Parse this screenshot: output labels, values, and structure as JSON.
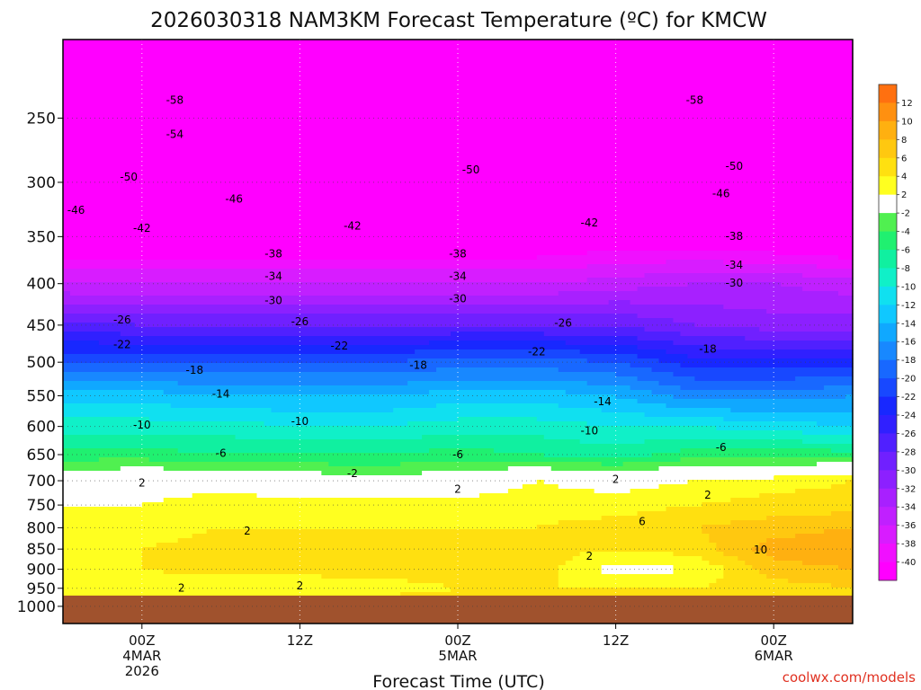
{
  "chart_data": {
    "type": "heatmap",
    "title": "2026030318 NAM3KM Forecast Temperature (ºC) for KMCW",
    "xlabel": "Forecast Time (UTC)",
    "credit": "coolwx.com/models",
    "y_axis": {
      "quantity": "pressure (hPa)",
      "scale": "log",
      "inverted": true,
      "range": [
        200,
        1050
      ],
      "ticks": [
        250,
        300,
        350,
        400,
        450,
        500,
        550,
        600,
        650,
        700,
        750,
        800,
        850,
        900,
        950,
        1000
      ]
    },
    "x_axis": {
      "range_hours": [
        -6,
        54
      ],
      "ticks": [
        {
          "hour": 0,
          "lines": [
            "00Z",
            "4MAR",
            "2026"
          ]
        },
        {
          "hour": 12,
          "lines": [
            "12Z"
          ]
        },
        {
          "hour": 24,
          "lines": [
            "00Z",
            "5MAR"
          ]
        },
        {
          "hour": 36,
          "lines": [
            "12Z"
          ]
        },
        {
          "hour": 48,
          "lines": [
            "00Z",
            "6MAR"
          ]
        }
      ]
    },
    "grid": "dotted",
    "colorbar": {
      "placement": "right",
      "levels": [
        -42,
        -40,
        -38,
        -36,
        -34,
        -32,
        -30,
        -28,
        -26,
        -24,
        -22,
        -20,
        -18,
        -16,
        -14,
        -12,
        -10,
        -8,
        -6,
        -4,
        -2,
        2,
        4,
        6,
        8,
        10,
        12,
        14
      ],
      "colors": [
        "#ff00ff",
        "#f010ff",
        "#d81cff",
        "#c020ff",
        "#a820ff",
        "#8c20ff",
        "#7020ff",
        "#5020ff",
        "#3020ff",
        "#1828ff",
        "#1848ff",
        "#1868ff",
        "#1888ff",
        "#10a8ff",
        "#10c8ff",
        "#10e0f0",
        "#10f0c8",
        "#10f0a0",
        "#20f070",
        "#50f050",
        "#ffffff",
        "#ffff20",
        "#ffe010",
        "#ffc810",
        "#ffb010",
        "#ff9010",
        "#ff7010"
      ],
      "labels": [
        -40,
        -38,
        -36,
        -34,
        -32,
        -30,
        -28,
        -26,
        -24,
        -22,
        -20,
        -18,
        -16,
        -14,
        -12,
        -10,
        -8,
        -6,
        -4,
        -2,
        2,
        4,
        6,
        8,
        10,
        12
      ],
      "label_texts": [
        "-40",
        "-38",
        "-36",
        "-34",
        "-32",
        "-30",
        "-28",
        "-26",
        "-24",
        "-22",
        "-20",
        "-18",
        "-16",
        "-14",
        "-12",
        "-10",
        "-8",
        "-6",
        "-4",
        "-2",
        "2",
        "4",
        "6",
        "8",
        "10",
        "12"
      ]
    },
    "ground_color": "#a0522d",
    "freezing_line_color": "#e0208a",
    "time_hours": [
      -6,
      0,
      6,
      12,
      18,
      24,
      30,
      36,
      42,
      48,
      54
    ],
    "pressure_levels": [
      200,
      250,
      300,
      350,
      400,
      450,
      500,
      550,
      600,
      650,
      700,
      750,
      800,
      850,
      900,
      950,
      990
    ],
    "temperature": [
      [
        -60,
        -60,
        -59,
        -60,
        -59,
        -56,
        -60,
        -57,
        -60,
        -60,
        -61
      ],
      [
        -55,
        -55,
        -55,
        -55,
        -55,
        -55,
        -55,
        -55,
        -56,
        -57,
        -57
      ],
      [
        -48,
        -49,
        -49,
        -49,
        -48,
        -49,
        -48,
        -49,
        -50,
        -51,
        -51
      ],
      [
        -43,
        -43,
        -43,
        -43,
        -43,
        -43,
        -43,
        -42,
        -42,
        -43,
        -44
      ],
      [
        -36,
        -36,
        -36,
        -36,
        -36,
        -36,
        -36,
        -35,
        -34,
        -34,
        -35
      ],
      [
        -27,
        -28,
        -28,
        -28,
        -28,
        -28,
        -28,
        -28,
        -30,
        -31,
        -31
      ],
      [
        -20,
        -20,
        -20,
        -20,
        -20,
        -19,
        -19,
        -20,
        -23,
        -23,
        -23
      ],
      [
        -13,
        -13,
        -14,
        -14,
        -14,
        -13,
        -13,
        -14,
        -17,
        -17,
        -16
      ],
      [
        -9,
        -9,
        -9,
        -10,
        -10,
        -9,
        -9,
        -10,
        -10,
        -11,
        -12
      ],
      [
        -5,
        -5,
        -6,
        -6,
        -6,
        -5,
        -6,
        -7,
        -5,
        -5,
        -5
      ],
      [
        0,
        1,
        1,
        0,
        -1,
        0,
        2,
        1,
        2,
        3,
        4
      ],
      [
        2,
        2,
        3,
        3,
        3,
        3,
        3,
        3,
        4,
        5,
        5
      ],
      [
        3,
        3,
        4,
        4,
        4,
        4,
        4,
        5,
        6,
        7,
        8
      ],
      [
        4,
        4,
        5,
        5,
        5,
        4,
        5,
        4,
        5,
        9,
        10
      ],
      [
        2,
        4,
        5,
        5,
        5,
        5,
        5,
        1,
        2,
        7,
        8
      ],
      [
        2,
        2,
        2,
        2,
        3,
        4,
        4,
        4,
        4,
        5,
        6
      ],
      [
        4,
        4,
        4,
        4,
        5,
        5,
        5,
        5,
        5,
        6,
        6
      ]
    ],
    "contour_labels": [
      {
        "hour": 2.5,
        "p": 238,
        "text": "-58"
      },
      {
        "hour": 42,
        "p": 238,
        "text": "-58"
      },
      {
        "hour": 2.5,
        "p": 262,
        "text": "-54"
      },
      {
        "hour": 25,
        "p": 290,
        "text": "-50"
      },
      {
        "hour": 45,
        "p": 287,
        "text": "-50"
      },
      {
        "hour": -1,
        "p": 296,
        "text": "-50"
      },
      {
        "hour": 7,
        "p": 315,
        "text": "-46"
      },
      {
        "hour": 44,
        "p": 310,
        "text": "-46"
      },
      {
        "hour": -5,
        "p": 325,
        "text": "-46"
      },
      {
        "hour": 0,
        "p": 342,
        "text": "-42"
      },
      {
        "hour": 16,
        "p": 340,
        "text": "-42"
      },
      {
        "hour": 34,
        "p": 337,
        "text": "-42"
      },
      {
        "hour": 45,
        "p": 350,
        "text": "-38"
      },
      {
        "hour": 24,
        "p": 368,
        "text": "-38"
      },
      {
        "hour": 10,
        "p": 368,
        "text": "-38"
      },
      {
        "hour": 45,
        "p": 380,
        "text": "-34"
      },
      {
        "hour": 24,
        "p": 392,
        "text": "-34"
      },
      {
        "hour": 10,
        "p": 392,
        "text": "-34"
      },
      {
        "hour": 45,
        "p": 400,
        "text": "-30"
      },
      {
        "hour": 24,
        "p": 418,
        "text": "-30"
      },
      {
        "hour": 10,
        "p": 420,
        "text": "-30"
      },
      {
        "hour": 32,
        "p": 448,
        "text": "-26"
      },
      {
        "hour": 12,
        "p": 446,
        "text": "-26"
      },
      {
        "hour": -1.5,
        "p": 444,
        "text": "-26"
      },
      {
        "hour": 43,
        "p": 482,
        "text": "-18"
      },
      {
        "hour": 30,
        "p": 486,
        "text": "-22"
      },
      {
        "hour": 15,
        "p": 478,
        "text": "-22"
      },
      {
        "hour": -1.5,
        "p": 476,
        "text": "-22"
      },
      {
        "hour": 21,
        "p": 505,
        "text": "-18"
      },
      {
        "hour": 4,
        "p": 512,
        "text": "-18"
      },
      {
        "hour": 35,
        "p": 560,
        "text": "-14"
      },
      {
        "hour": 6,
        "p": 548,
        "text": "-14"
      },
      {
        "hour": 12,
        "p": 592,
        "text": "-10"
      },
      {
        "hour": 34,
        "p": 608,
        "text": "-10"
      },
      {
        "hour": 0,
        "p": 598,
        "text": "-10"
      },
      {
        "hour": 24,
        "p": 651,
        "text": "-6"
      },
      {
        "hour": 6,
        "p": 648,
        "text": "-6"
      },
      {
        "hour": 44,
        "p": 638,
        "text": "-6"
      },
      {
        "hour": 16,
        "p": 687,
        "text": "-2"
      },
      {
        "hour": 0,
        "p": 705,
        "text": "2"
      },
      {
        "hour": 24,
        "p": 718,
        "text": "2"
      },
      {
        "hour": 36,
        "p": 698,
        "text": "2"
      },
      {
        "hour": 43,
        "p": 730,
        "text": "2"
      },
      {
        "hour": 8,
        "p": 808,
        "text": "2"
      },
      {
        "hour": 12,
        "p": 945,
        "text": "2"
      },
      {
        "hour": 3,
        "p": 950,
        "text": "2"
      },
      {
        "hour": 38,
        "p": 787,
        "text": "6"
      },
      {
        "hour": 34,
        "p": 868,
        "text": "2"
      },
      {
        "hour": 47,
        "p": 853,
        "text": "10"
      }
    ]
  }
}
